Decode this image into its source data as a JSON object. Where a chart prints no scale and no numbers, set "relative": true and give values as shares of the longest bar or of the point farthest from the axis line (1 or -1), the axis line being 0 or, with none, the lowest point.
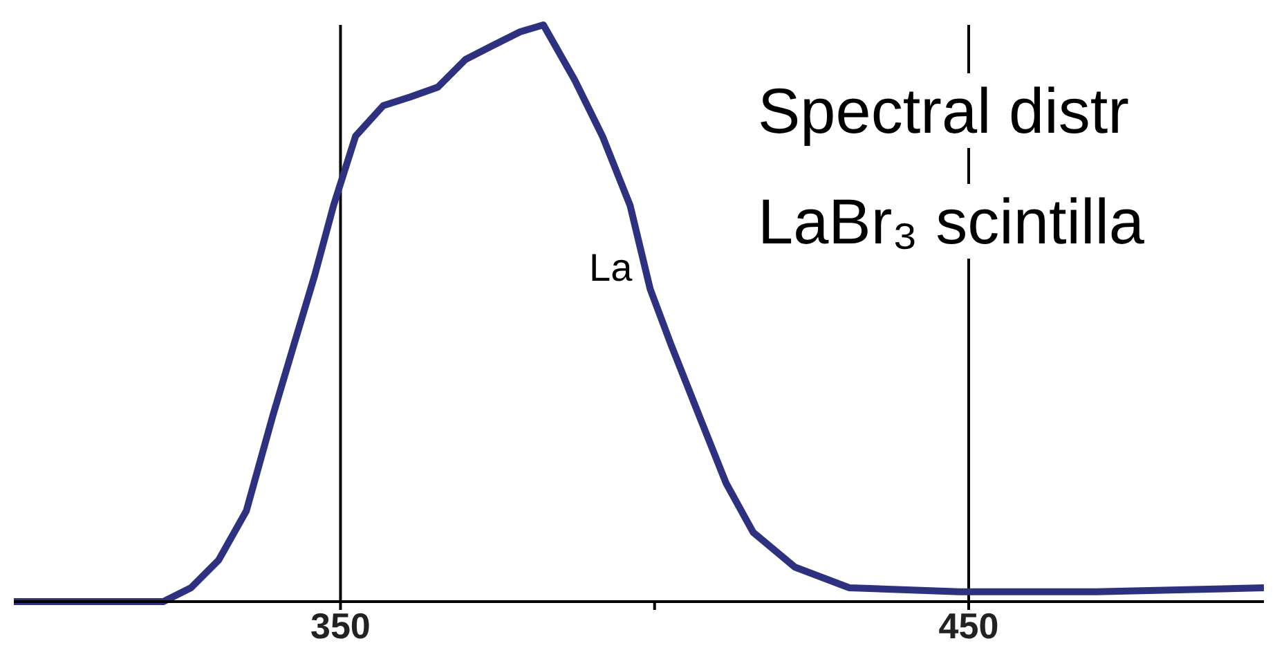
{
  "chart_data": {
    "type": "line",
    "relative": true,
    "xlim": [
      298,
      497
    ],
    "xticks": [
      350,
      {
        "value": 400,
        "label": null
      },
      450
    ],
    "grid": "x",
    "marker": "none",
    "line_style": "solid",
    "annotations": [
      "Spectral distr",
      "LaBr₃ scintilla",
      "La"
    ],
    "series": [
      {
        "color": "#2e3080",
        "x": [
          298,
          321.8,
          326.2,
          330.6,
          335,
          339.3,
          342.6,
          345.9,
          348.9,
          352.4,
          356.8,
          361.1,
          365.5,
          369.9,
          374.2,
          378.6,
          382.3,
          387.3,
          391.7,
          396.1,
          399.3,
          402.6,
          407,
          411.4,
          415.7,
          422.3,
          431,
          448.5,
          470.3,
          497
        ],
        "values": [
          0,
          0,
          0.024,
          0.072,
          0.157,
          0.325,
          0.446,
          0.566,
          0.687,
          0.807,
          0.86,
          0.875,
          0.892,
          0.94,
          0.964,
          0.988,
          1,
          0.904,
          0.807,
          0.687,
          0.542,
          0.446,
          0.325,
          0.205,
          0.12,
          0.06,
          0.024,
          0.017,
          0.017,
          0.024
        ]
      }
    ]
  }
}
